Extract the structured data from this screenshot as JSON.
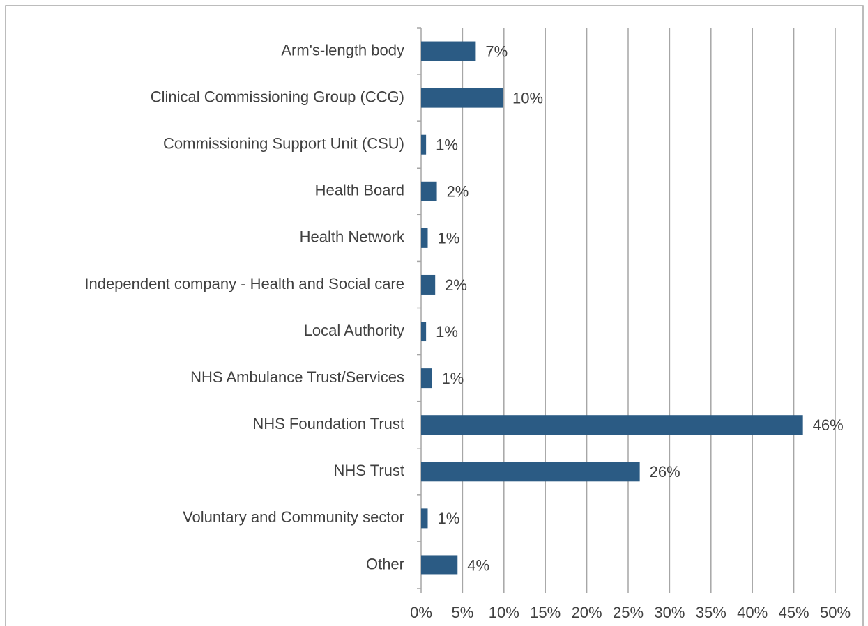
{
  "chart_data": {
    "type": "bar",
    "orientation": "horizontal",
    "categories": [
      "Arm's-length body",
      "Clinical Commissioning Group (CCG)",
      "Commissioning Support Unit (CSU)",
      "Health Board",
      "Health Network",
      "Independent company - Health and Social care",
      "Local Authority",
      "NHS Ambulance Trust/Services",
      "NHS Foundation Trust",
      "NHS Trust",
      "Voluntary and Community sector",
      "Other"
    ],
    "values": [
      6.6,
      9.85,
      0.6,
      1.9,
      0.8,
      1.7,
      0.6,
      1.3,
      46.1,
      26.4,
      0.8,
      4.4
    ],
    "value_labels": [
      "7%",
      "10%",
      "1%",
      "2%",
      "1%",
      "2%",
      "1%",
      "1%",
      "46%",
      "26%",
      "1%",
      "4%"
    ],
    "color": "#2b5b84",
    "xlim": [
      0,
      50
    ],
    "xticks": [
      {
        "value": 0,
        "label": "0%"
      },
      {
        "value": 5,
        "label": "5%"
      },
      {
        "value": 10,
        "label": "10%"
      },
      {
        "value": 15,
        "label": "15%"
      },
      {
        "value": 20,
        "label": "20%"
      },
      {
        "value": 25,
        "label": "25%"
      },
      {
        "value": 30,
        "label": "30%"
      },
      {
        "value": 35,
        "label": "35%"
      },
      {
        "value": 40,
        "label": "40%"
      },
      {
        "value": 45,
        "label": "45%"
      },
      {
        "value": 50,
        "label": "50%"
      }
    ],
    "grid": true
  }
}
